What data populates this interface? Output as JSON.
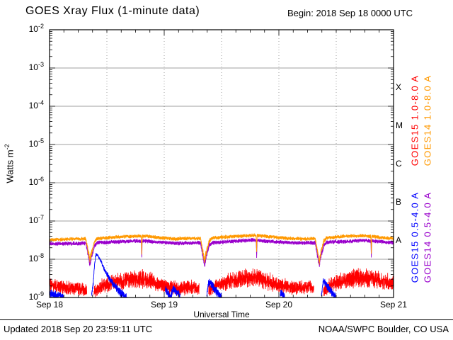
{
  "title": "GOES Xray Flux (1-minute data)",
  "begin_label": "Begin: 2018 Sep 18 0000 UTC",
  "footer": {
    "updated": "Updated 2018 Sep 20 23:59:11 UTC",
    "credit": "NOAA/SWPC Boulder, CO USA"
  },
  "axes": {
    "x_label": "Universal Time",
    "y_label_base": "Watts m",
    "y_label_exp": "-2",
    "y_tick_mantissa": "10",
    "x_tick_hours": [
      0,
      24,
      48,
      72
    ],
    "x_tick_labels": [
      "Sep 18",
      "Sep 19",
      "Sep 20",
      "Sep 21"
    ],
    "y_decades": [
      -2,
      -3,
      -4,
      -5,
      -6,
      -7,
      -8,
      -9
    ],
    "x_range_hours": [
      0,
      72
    ],
    "y_range_log": [
      -9,
      -2
    ],
    "flare_classes": [
      {
        "label": "X",
        "log_center": -3.5
      },
      {
        "label": "M",
        "log_center": -4.5
      },
      {
        "label": "C",
        "log_center": -5.5
      },
      {
        "label": "B",
        "log_center": -6.5
      },
      {
        "label": "A",
        "log_center": -7.5
      }
    ],
    "grid": {
      "h_lines_log": [
        -3,
        -4,
        -5,
        -6,
        -7,
        -8
      ],
      "v_lines_hours": [
        12,
        24,
        36,
        48,
        60
      ],
      "minor_tick_hours": 3,
      "major_tick_hours": 24
    }
  },
  "chart_data": {
    "type": "line",
    "title": "GOES Xray Flux (1-minute data)",
    "xlabel": "Universal Time",
    "ylabel": "Watts m^-2",
    "x_unit": "hours since 2018 Sep 18 0000 UTC",
    "y_scale": "log10",
    "ylim": [
      1e-09,
      0.01
    ],
    "xlim_hours": [
      0,
      72
    ],
    "legend_position": "right-rotated",
    "note": "Quiet-sun background with daily satellite eclipse dips near 08:30, 32:30 and 56:30 UT hours; segments are [hour, watts_per_m2, noise_dex] control points of 1-minute noisy traces.",
    "series": [
      {
        "id": "goes15_long",
        "label": "GOES15 1.0-8.0 A",
        "color": "#FF0000",
        "segments": [
          [
            [
              0,
              2.1e-09,
              0.2
            ],
            [
              3,
              1.8e-09,
              0.2
            ],
            [
              6,
              1.7e-09,
              0.2
            ],
            [
              7.8,
              1.6e-09,
              0.2
            ]
          ],
          [
            [
              9.3,
              1.4e-09,
              0.18
            ],
            [
              11,
              2e-09,
              0.22
            ],
            [
              14,
              2.6e-09,
              0.25
            ],
            [
              17,
              3e-09,
              0.27
            ],
            [
              20,
              3e-09,
              0.27
            ],
            [
              22,
              2.4e-09,
              0.25
            ],
            [
              24,
              2e-09,
              0.22
            ],
            [
              27,
              1.7e-09,
              0.2
            ],
            [
              30,
              1.9e-09,
              0.22
            ],
            [
              31.3,
              1.7e-09,
              0.2
            ]
          ],
          [
            [
              33.3,
              1.5e-09,
              0.18
            ],
            [
              35,
              2e-09,
              0.22
            ],
            [
              38,
              2.7e-09,
              0.26
            ],
            [
              41,
              3.2e-09,
              0.28
            ],
            [
              44,
              3.2e-09,
              0.28
            ],
            [
              46,
              2.6e-09,
              0.26
            ],
            [
              48,
              2.1e-09,
              0.23
            ],
            [
              51,
              1.8e-09,
              0.2
            ],
            [
              54,
              1.9e-09,
              0.21
            ],
            [
              55.3,
              1.7e-09,
              0.2
            ]
          ],
          [
            [
              57.3,
              1.5e-09,
              0.18
            ],
            [
              59,
              2.1e-09,
              0.23
            ],
            [
              62,
              2.9e-09,
              0.27
            ],
            [
              65,
              3.4e-09,
              0.29
            ],
            [
              68,
              3e-09,
              0.28
            ],
            [
              70,
              2.6e-09,
              0.26
            ],
            [
              72,
              2.4e-09,
              0.25
            ]
          ]
        ]
      },
      {
        "id": "goes14_long",
        "label": "GOES14 1.0-8.0 A",
        "color": "#FF9900",
        "segments": [
          [
            [
              0,
              3.2e-08,
              0.055
            ],
            [
              5,
              3.4e-08,
              0.055
            ],
            [
              7.6,
              3.4e-08,
              0.055
            ],
            [
              8.1,
              1.6e-08,
              0.1
            ],
            [
              8.45,
              9.5e-09,
              0.13
            ],
            [
              8.8,
              1.5e-08,
              0.1
            ],
            [
              9.4,
              2.9e-08,
              0.07
            ],
            [
              10,
              3.5e-08,
              0.055
            ],
            [
              14,
              3.8e-08,
              0.055
            ],
            [
              18,
              4e-08,
              0.055
            ],
            [
              19.2,
              4e-08,
              0.055
            ],
            [
              19.3,
              1.4e-08,
              0.05
            ],
            [
              19.4,
              4e-08,
              0.055
            ],
            [
              21,
              3.9e-08,
              0.055
            ],
            [
              23,
              3.7e-08,
              0.055
            ],
            [
              26,
              3.4e-08,
              0.055
            ],
            [
              29,
              3.5e-08,
              0.055
            ],
            [
              31.6,
              3.5e-08,
              0.055
            ],
            [
              32.1,
              1.5e-08,
              0.1
            ],
            [
              32.45,
              9e-09,
              0.13
            ],
            [
              32.8,
              1.5e-08,
              0.1
            ],
            [
              33.4,
              3e-08,
              0.07
            ],
            [
              34,
              3.6e-08,
              0.055
            ],
            [
              38,
              3.9e-08,
              0.055
            ],
            [
              43,
              4.2e-08,
              0.055
            ],
            [
              43.25,
              4.2e-08,
              0.055
            ],
            [
              43.35,
              1.5e-08,
              0.05
            ],
            [
              43.45,
              4.2e-08,
              0.055
            ],
            [
              47,
              3.8e-08,
              0.055
            ],
            [
              50,
              3.5e-08,
              0.055
            ],
            [
              53,
              3.4e-08,
              0.055
            ],
            [
              55.6,
              3.5e-08,
              0.055
            ],
            [
              56.1,
              1.5e-08,
              0.1
            ],
            [
              56.45,
              8.5e-09,
              0.13
            ],
            [
              56.8,
              1.5e-08,
              0.1
            ],
            [
              57.4,
              3e-08,
              0.07
            ],
            [
              58,
              3.6e-08,
              0.055
            ],
            [
              62,
              4e-08,
              0.055
            ],
            [
              66,
              4.1e-08,
              0.055
            ],
            [
              67.25,
              4e-08,
              0.055
            ],
            [
              67.35,
              1.5e-08,
              0.05
            ],
            [
              67.45,
              4e-08,
              0.055
            ],
            [
              69,
              3.7e-08,
              0.055
            ],
            [
              72,
              3.5e-08,
              0.055
            ]
          ]
        ]
      },
      {
        "id": "goes15_short",
        "label": "GOES15 0.5-4.0 A",
        "color": "#0000FF",
        "segments": [
          [
            [
              0,
              1.25e-09,
              0.12
            ],
            [
              1.5,
              1.15e-09,
              0.12
            ],
            [
              3,
              1.05e-09,
              0.1
            ]
          ],
          [
            [
              8.8,
              1.1e-09,
              0.08
            ],
            [
              9.15,
              2.5e-09,
              0.08
            ],
            [
              9.45,
              8e-09,
              0.05
            ],
            [
              9.7,
              1.35e-08,
              0.04
            ],
            [
              10.1,
              1.25e-08,
              0.04
            ],
            [
              10.8,
              8.5e-09,
              0.05
            ],
            [
              11.6,
              5e-09,
              0.07
            ],
            [
              12.5,
              3.2e-09,
              0.09
            ],
            [
              13.5,
              2.1e-09,
              0.11
            ],
            [
              14.5,
              1.5e-09,
              0.13
            ],
            [
              15.5,
              1.15e-09,
              0.13
            ],
            [
              16.2,
              1e-09,
              0.12
            ]
          ],
          [
            [
              24.2,
              1.7e-09,
              0.13
            ],
            [
              24.8,
              1.3e-09,
              0.13
            ],
            [
              25.3,
              1e-09,
              0.1
            ],
            [
              25.8,
              1.7e-09,
              0.14
            ],
            [
              26.5,
              1.5e-09,
              0.14
            ],
            [
              27.3,
              1.15e-09,
              0.13
            ]
          ],
          [
            [
              32.9,
              1.1e-09,
              0.08
            ],
            [
              33.3,
              2.6e-09,
              0.12
            ],
            [
              34.2,
              1.9e-09,
              0.14
            ],
            [
              35.2,
              1.3e-09,
              0.13
            ],
            [
              36,
              1.05e-09,
              0.12
            ]
          ],
          [
            [
              48.3,
              1.3e-09,
              0.13
            ],
            [
              49.2,
              1.1e-09,
              0.12
            ]
          ],
          [
            [
              56.9,
              1.1e-09,
              0.08
            ],
            [
              57.3,
              2.7e-09,
              0.12
            ],
            [
              58.2,
              1.9e-09,
              0.14
            ],
            [
              59.2,
              1.3e-09,
              0.13
            ],
            [
              60,
              1.05e-09,
              0.12
            ]
          ]
        ]
      },
      {
        "id": "goes14_short",
        "label": "GOES14 0.5-4.0 A",
        "color": "#9900CC",
        "segments": [
          [
            [
              0,
              2.5e-08,
              0.06
            ],
            [
              5,
              2.6e-08,
              0.06
            ],
            [
              7.6,
              2.6e-08,
              0.06
            ],
            [
              8.1,
              1.3e-08,
              0.1
            ],
            [
              8.45,
              7.5e-09,
              0.13
            ],
            [
              8.8,
              1.2e-08,
              0.1
            ],
            [
              9.4,
              2.2e-08,
              0.07
            ],
            [
              10,
              2.7e-08,
              0.06
            ],
            [
              18,
              3e-08,
              0.06
            ],
            [
              19.2,
              3e-08,
              0.06
            ],
            [
              19.3,
              1.1e-08,
              0.05
            ],
            [
              19.4,
              3e-08,
              0.06
            ],
            [
              23,
              2.8e-08,
              0.06
            ],
            [
              26,
              2.6e-08,
              0.06
            ],
            [
              31.6,
              2.7e-08,
              0.06
            ],
            [
              32.1,
              1.2e-08,
              0.1
            ],
            [
              32.45,
              7e-09,
              0.13
            ],
            [
              32.8,
              1.2e-08,
              0.1
            ],
            [
              33.4,
              2.3e-08,
              0.07
            ],
            [
              34,
              2.7e-08,
              0.06
            ],
            [
              43,
              3.2e-08,
              0.06
            ],
            [
              43.25,
              3.1e-08,
              0.06
            ],
            [
              43.35,
              1.1e-08,
              0.05
            ],
            [
              43.45,
              3.1e-08,
              0.06
            ],
            [
              50,
              2.7e-08,
              0.06
            ],
            [
              55.6,
              2.7e-08,
              0.06
            ],
            [
              56.1,
              1.2e-08,
              0.1
            ],
            [
              56.45,
              7e-09,
              0.13
            ],
            [
              56.8,
              1.2e-08,
              0.1
            ],
            [
              57.4,
              2.3e-08,
              0.07
            ],
            [
              58,
              2.8e-08,
              0.06
            ],
            [
              66,
              3.1e-08,
              0.06
            ],
            [
              67.25,
              3e-08,
              0.06
            ],
            [
              67.35,
              1.1e-08,
              0.05
            ],
            [
              67.45,
              3e-08,
              0.06
            ],
            [
              72,
              2.7e-08,
              0.06
            ]
          ]
        ]
      }
    ]
  }
}
